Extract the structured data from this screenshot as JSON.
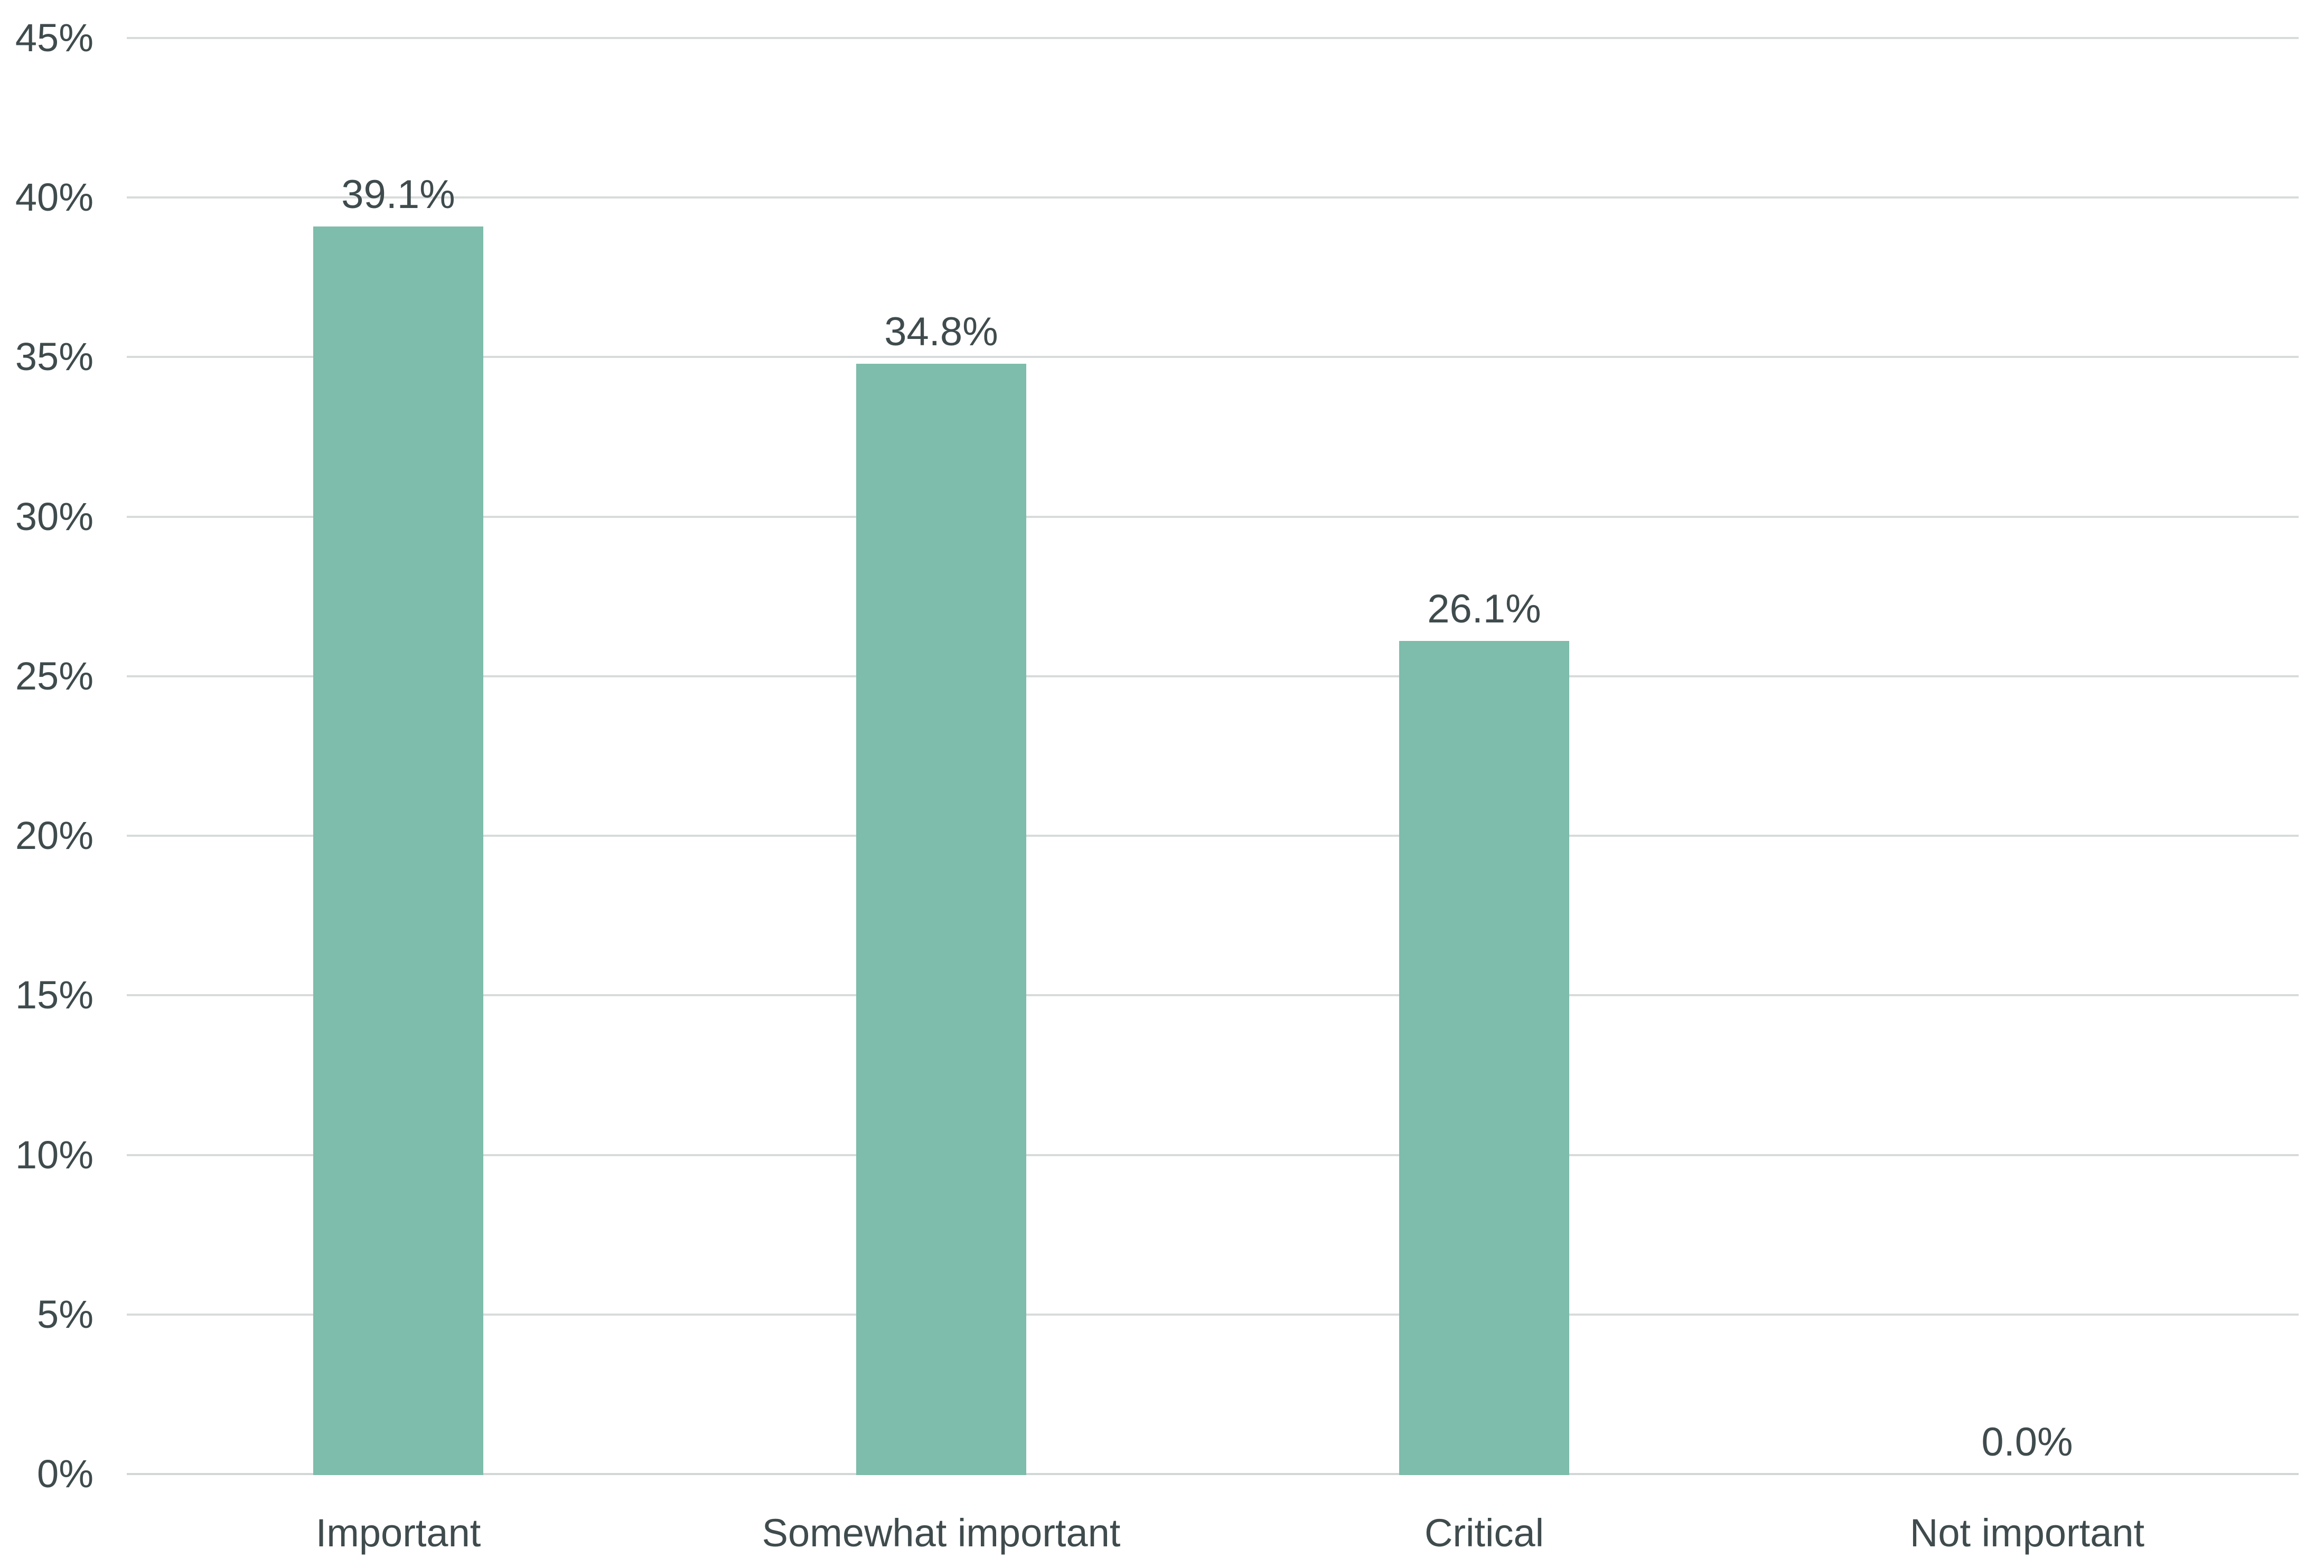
{
  "chart_data": {
    "type": "bar",
    "categories": [
      "Important",
      "Somewhat important",
      "Critical",
      "Not important"
    ],
    "values": [
      39.1,
      34.8,
      26.1,
      0.0
    ],
    "value_labels": [
      "39.1%",
      "34.8%",
      "26.1%",
      "0.0%"
    ],
    "y_ticks": [
      "0%",
      "5%",
      "10%",
      "15%",
      "20%",
      "25%",
      "30%",
      "35%",
      "40%",
      "45%"
    ],
    "y_tick_values": [
      0,
      5,
      10,
      15,
      20,
      25,
      30,
      35,
      40,
      45
    ],
    "ylim": [
      0,
      45
    ],
    "grid": true,
    "legend_position": "none"
  },
  "colors": {
    "bar": "#7ebcab",
    "text": "#3f4b4d",
    "gridline": "#d8dbdb",
    "baseline_gridline": "#d3d6d6",
    "background": "#ffffff"
  }
}
